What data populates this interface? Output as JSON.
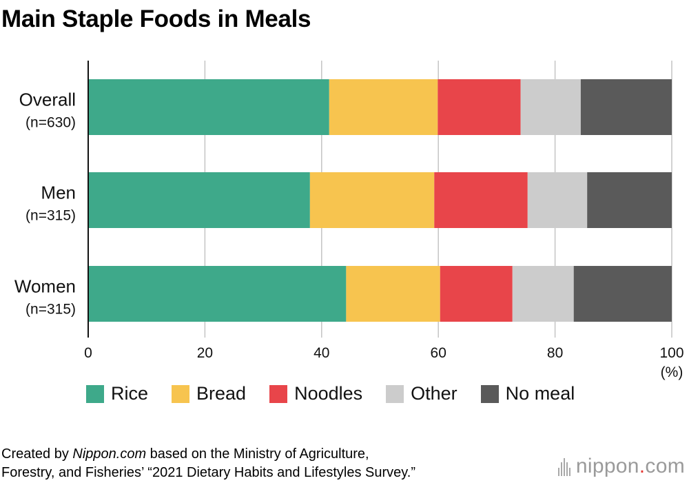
{
  "title": "Main Staple Foods in Meals",
  "chart_data": {
    "type": "bar",
    "orientation": "horizontal",
    "stacked": true,
    "categories": [
      "Overall",
      "Men",
      "Women"
    ],
    "category_n": [
      "(n=630)",
      "(n=315)",
      "(n=315)"
    ],
    "series": [
      {
        "name": "Rice",
        "color": "#3ea98a",
        "values": [
          41.3,
          38.0,
          44.2
        ]
      },
      {
        "name": "Bread",
        "color": "#f7c44f",
        "values": [
          18.6,
          21.3,
          16.1
        ]
      },
      {
        "name": "Noodles",
        "color": "#e8454a",
        "values": [
          14.2,
          16.0,
          12.4
        ]
      },
      {
        "name": "Other",
        "color": "#cccccc",
        "values": [
          10.3,
          10.2,
          10.5
        ]
      },
      {
        "name": "No meal",
        "color": "#5a5a5a",
        "values": [
          15.6,
          14.5,
          16.8
        ]
      }
    ],
    "xlim": [
      0,
      100
    ],
    "xticks": [
      0,
      20,
      40,
      60,
      80,
      100
    ],
    "xunit": "(%)",
    "grid": true,
    "legend_position": "bottom"
  },
  "footer": {
    "prefix": "Created by ",
    "site": "Nippon.com",
    "line1_rest": " based on the Ministry of Agriculture,",
    "line2": "Forestry, and Fisheries’ “2021 Dietary Habits and Lifestyles Survey.”"
  },
  "logo": {
    "main": "nippon",
    "dot": ".",
    "tld": "com"
  }
}
